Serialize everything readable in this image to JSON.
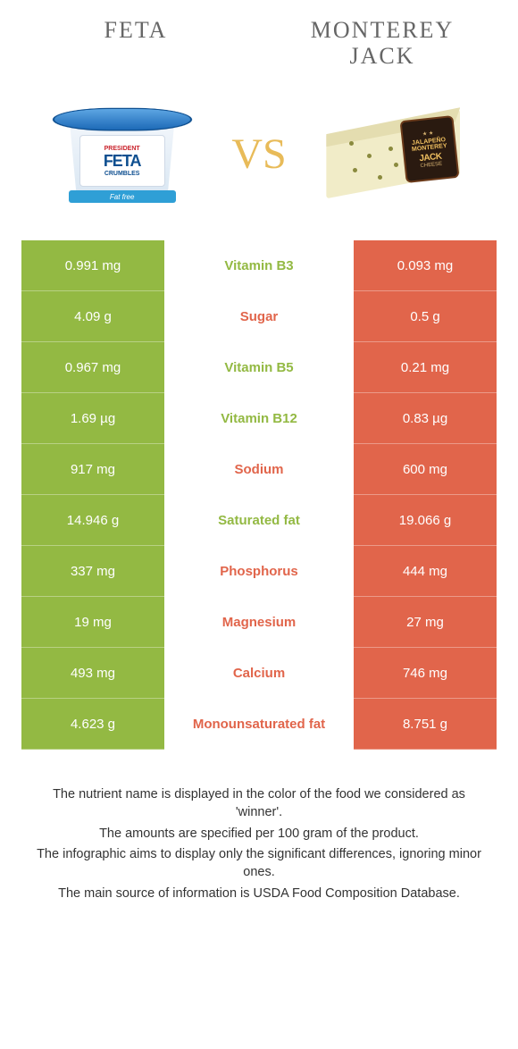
{
  "colors": {
    "left_col": "#93b943",
    "right_col": "#e1654b",
    "mid_bg": "#ffffff",
    "header_text": "#666666",
    "vs_color": "#e8bb59"
  },
  "header": {
    "left_title": "FETA",
    "right_title_line1": "MONTEREY",
    "right_title_line2": "JACK",
    "vs_label": "VS"
  },
  "rows": [
    {
      "left": "0.991 mg",
      "label": "Vitamin B3",
      "right": "0.093 mg",
      "winner": "left"
    },
    {
      "left": "4.09 g",
      "label": "Sugar",
      "right": "0.5 g",
      "winner": "right"
    },
    {
      "left": "0.967 mg",
      "label": "Vitamin B5",
      "right": "0.21 mg",
      "winner": "left"
    },
    {
      "left": "1.69 µg",
      "label": "Vitamin B12",
      "right": "0.83 µg",
      "winner": "left"
    },
    {
      "left": "917 mg",
      "label": "Sodium",
      "right": "600 mg",
      "winner": "right"
    },
    {
      "left": "14.946 g",
      "label": "Saturated fat",
      "right": "19.066 g",
      "winner": "left"
    },
    {
      "left": "337 mg",
      "label": "Phosphorus",
      "right": "444 mg",
      "winner": "right"
    },
    {
      "left": "19 mg",
      "label": "Magnesium",
      "right": "27 mg",
      "winner": "right"
    },
    {
      "left": "493 mg",
      "label": "Calcium",
      "right": "746 mg",
      "winner": "right"
    },
    {
      "left": "4.623 g",
      "label": "Monounsaturated fat",
      "right": "8.751 g",
      "winner": "right"
    }
  ],
  "footnotes": [
    "The nutrient name is displayed in the color of the food we considered as 'winner'.",
    "The amounts are specified per 100 gram of the product.",
    "The infographic aims to display only the significant differences, ignoring minor ones.",
    "The main source of information is USDA Food Composition Database."
  ]
}
